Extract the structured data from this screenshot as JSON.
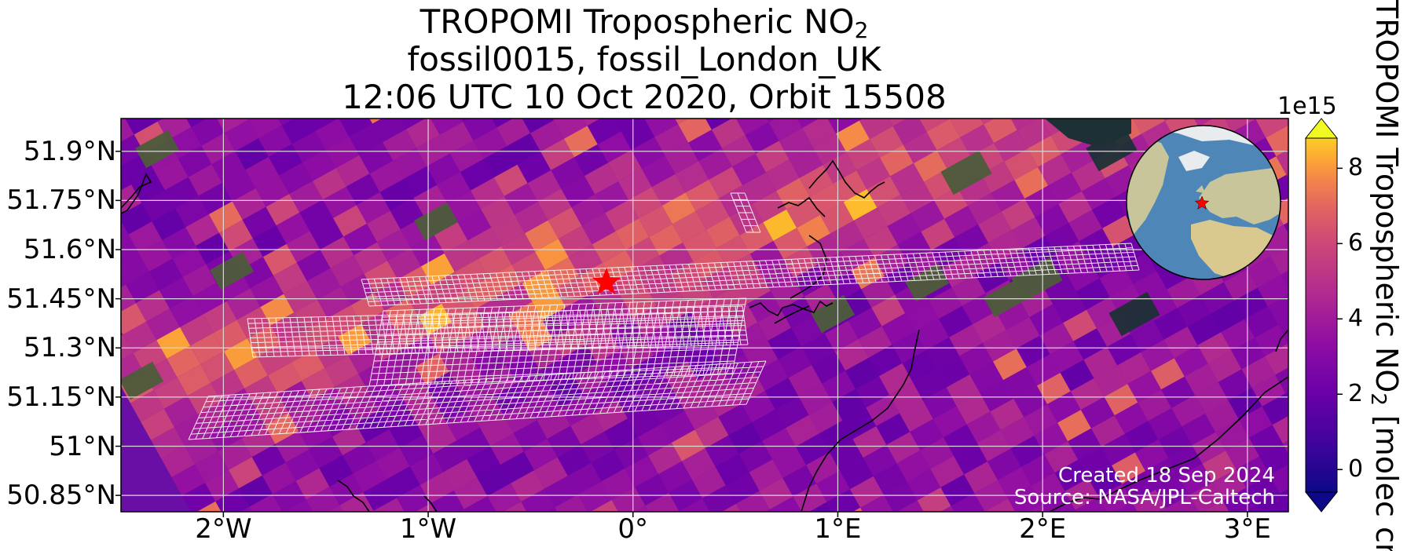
{
  "title": {
    "line1_prefix": "TROPOMI Tropospheric NO",
    "line1_sub": "2",
    "line2": "fossil0015, fossil_London_UK",
    "line3": "12:06 UTC 10 Oct 2020, Orbit 15508"
  },
  "map": {
    "extent_lon": [
      -2.5,
      3.2
    ],
    "extent_lat": [
      50.8,
      52.0
    ],
    "target": {
      "lon": -0.13,
      "lat": 51.5,
      "marker": "star-icon",
      "color": "#ff0000"
    },
    "gridlines": true,
    "lat_ticks": [
      {
        "value": 51.9,
        "label": "51.9°N"
      },
      {
        "value": 51.75,
        "label": "51.75°N"
      },
      {
        "value": 51.6,
        "label": "51.6°N"
      },
      {
        "value": 51.45,
        "label": "51.45°N"
      },
      {
        "value": 51.3,
        "label": "51.3°N"
      },
      {
        "value": 51.15,
        "label": "51.15°N"
      },
      {
        "value": 51.0,
        "label": "51°N"
      },
      {
        "value": 50.85,
        "label": "50.85°N"
      }
    ],
    "lon_ticks": [
      {
        "value": -2,
        "label": "2°W"
      },
      {
        "value": -1,
        "label": "1°W"
      },
      {
        "value": 0,
        "label": "0°"
      },
      {
        "value": 1,
        "label": "1°E"
      },
      {
        "value": 2,
        "label": "2°E"
      },
      {
        "value": 3,
        "label": "3°E"
      }
    ],
    "inset_globe": {
      "target_marker": "star-icon",
      "ocean_color": "#4f86b8",
      "land_color": "#c9c59a"
    }
  },
  "colorbar": {
    "exponent": "1e15",
    "ticks": [
      {
        "value": 0,
        "label": "0"
      },
      {
        "value": 2,
        "label": "2"
      },
      {
        "value": 4,
        "label": "4"
      },
      {
        "value": 6,
        "label": "6"
      },
      {
        "value": 8,
        "label": "8"
      }
    ],
    "vmin": -0.6,
    "vmax": 8.8,
    "colormap": "plasma",
    "extend": "both",
    "label_prefix": "TROPOMI Tropospheric NO",
    "label_sub": "2",
    "label_suffix": " [molec cm"
  },
  "credit": {
    "created": "Created 18 Sep 2024",
    "source": "Source: NASA/JPL-Caltech"
  },
  "colors": {
    "grid": "#d9d9d9",
    "coastline": "#000000",
    "sounding_outline": "#ffffff"
  }
}
